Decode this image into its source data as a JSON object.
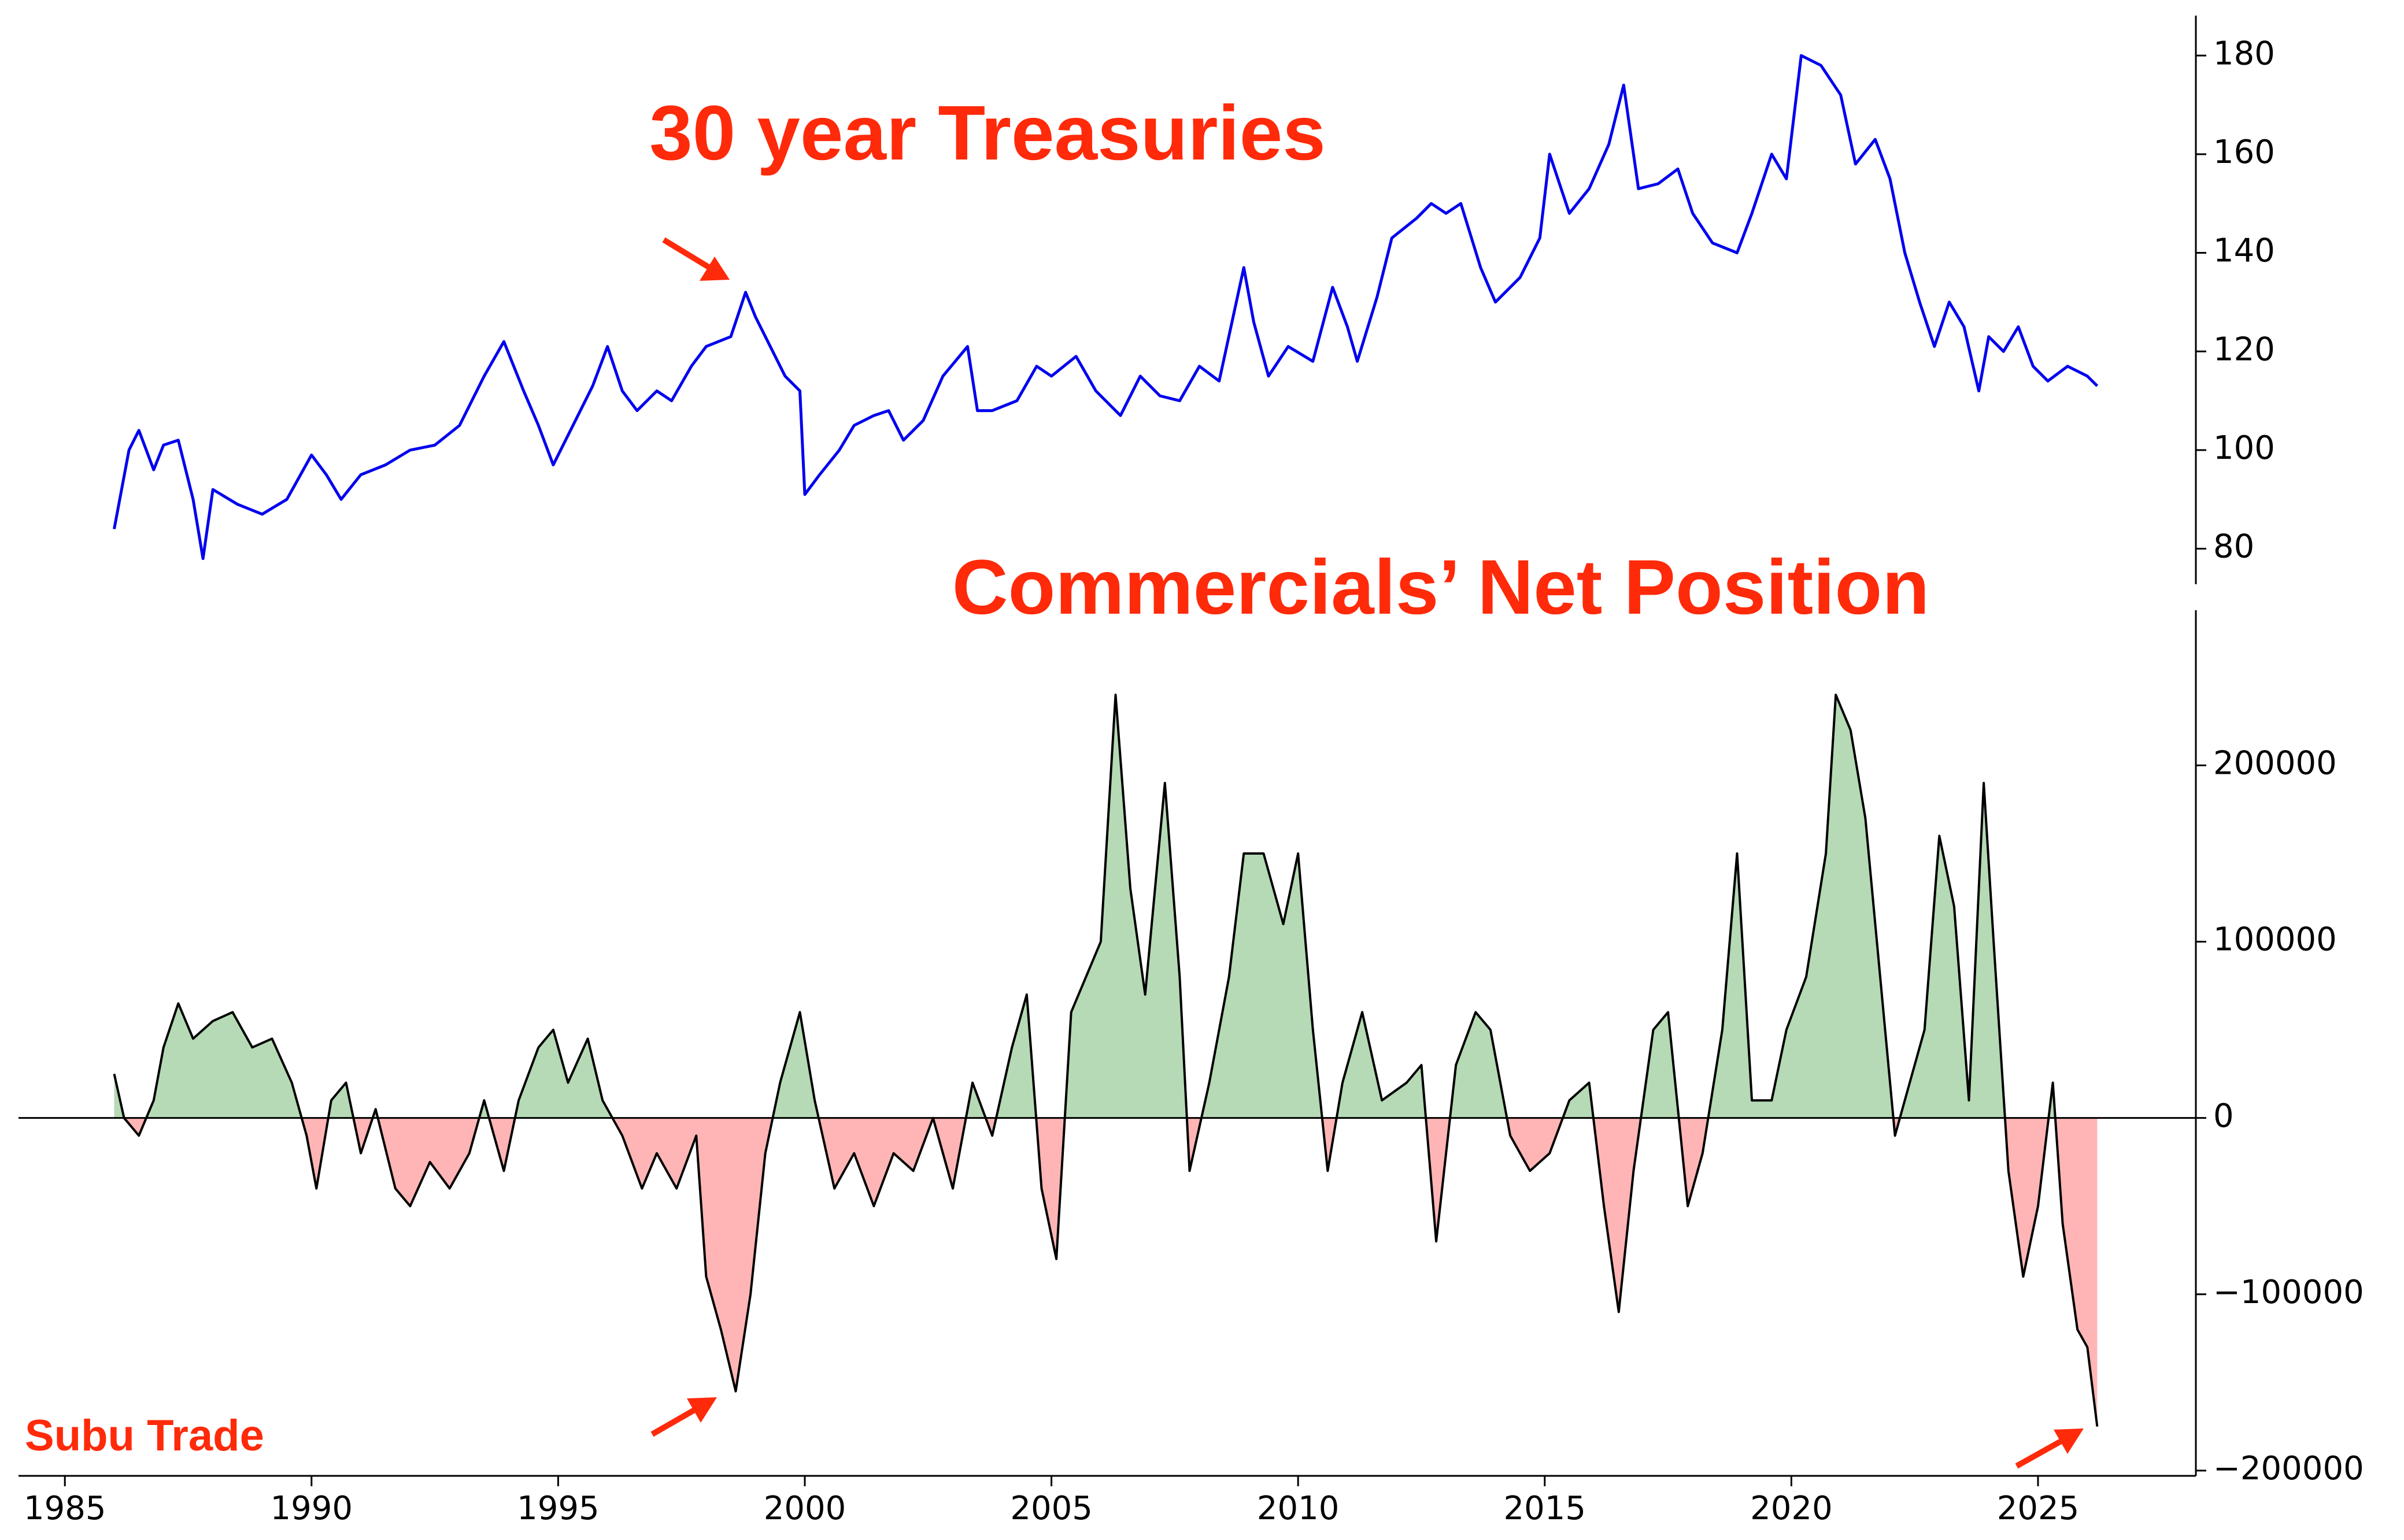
{
  "chart_data": [
    {
      "type": "line",
      "title": "30 year Treasuries",
      "x": [
        1986.0,
        1986.3,
        1986.5,
        1986.8,
        1987.0,
        1987.3,
        1987.6,
        1987.8,
        1988.0,
        1988.5,
        1989.0,
        1989.5,
        1990.0,
        1990.3,
        1990.6,
        1991.0,
        1991.5,
        1992.0,
        1992.5,
        1993.0,
        1993.5,
        1993.9,
        1994.3,
        1994.6,
        1994.9,
        1995.3,
        1995.7,
        1996.0,
        1996.3,
        1996.6,
        1997.0,
        1997.3,
        1997.7,
        1998.0,
        1998.5,
        1998.8,
        1999.0,
        1999.3,
        1999.6,
        1999.9,
        2000.0,
        2000.3,
        2000.7,
        2001.0,
        2001.4,
        2001.7,
        2002.0,
        2002.4,
        2002.8,
        2003.3,
        2003.5,
        2003.8,
        2004.3,
        2004.7,
        2005.0,
        2005.5,
        2005.9,
        2006.4,
        2006.8,
        2007.2,
        2007.6,
        2008.0,
        2008.4,
        2008.9,
        2009.1,
        2009.4,
        2009.8,
        2010.3,
        2010.7,
        2011.0,
        2011.2,
        2011.6,
        2011.9,
        2012.4,
        2012.7,
        2013.0,
        2013.3,
        2013.7,
        2014.0,
        2014.5,
        2014.9,
        2015.1,
        2015.5,
        2015.9,
        2016.3,
        2016.6,
        2016.9,
        2017.3,
        2017.7,
        2018.0,
        2018.4,
        2018.9,
        2019.2,
        2019.6,
        2019.9,
        2020.2,
        2020.6,
        2021.0,
        2021.3,
        2021.7,
        2022.0,
        2022.3,
        2022.6,
        2022.9,
        2023.2,
        2023.5,
        2023.8,
        2024.0,
        2024.3,
        2024.6,
        2024.9,
        2025.2,
        2025.6,
        2026.0,
        2026.2
      ],
      "series": [
        {
          "name": "30 year Treasuries",
          "color": "#0000ee",
          "values": [
            84,
            100,
            104,
            96,
            101,
            102,
            90,
            78,
            92,
            89,
            87,
            90,
            99,
            95,
            90,
            95,
            97,
            100,
            101,
            105,
            115,
            122,
            112,
            105,
            97,
            105,
            113,
            121,
            112,
            108,
            112,
            110,
            117,
            121,
            123,
            132,
            127,
            121,
            115,
            112,
            91,
            95,
            100,
            105,
            107,
            108,
            102,
            106,
            115,
            121,
            108,
            108,
            110,
            117,
            115,
            119,
            112,
            107,
            115,
            111,
            110,
            117,
            114,
            137,
            126,
            115,
            121,
            118,
            133,
            125,
            118,
            131,
            143,
            147,
            150,
            148,
            150,
            137,
            130,
            135,
            143,
            160,
            148,
            153,
            162,
            174,
            153,
            154,
            157,
            148,
            142,
            140,
            148,
            160,
            155,
            180,
            178,
            172,
            158,
            163,
            155,
            140,
            130,
            121,
            130,
            125,
            112,
            123,
            120,
            125,
            117,
            114,
            117,
            115,
            113
          ]
        }
      ],
      "xlim": [
        1984.06,
        2028.2
      ],
      "ylim": [
        72.8,
        188.1
      ],
      "yticks": [
        80,
        100,
        120,
        140,
        160,
        180
      ]
    },
    {
      "type": "area",
      "title": "Commercials’ Net Position",
      "annotation": "Subu Trade",
      "x": [
        1986.0,
        1986.2,
        1986.5,
        1986.8,
        1987.0,
        1987.3,
        1987.6,
        1988.0,
        1988.4,
        1988.8,
        1989.2,
        1989.6,
        1989.9,
        1990.1,
        1990.4,
        1990.7,
        1991.0,
        1991.3,
        1991.7,
        1992.0,
        1992.4,
        1992.8,
        1993.2,
        1993.5,
        1993.9,
        1994.2,
        1994.6,
        1994.9,
        1995.2,
        1995.6,
        1995.9,
        1996.3,
        1996.7,
        1997.0,
        1997.4,
        1997.8,
        1998.0,
        1998.3,
        1998.6,
        1998.9,
        1999.2,
        1999.5,
        1999.9,
        2000.2,
        2000.6,
        2001.0,
        2001.4,
        2001.8,
        2002.2,
        2002.6,
        2003.0,
        2003.4,
        2003.8,
        2004.2,
        2004.5,
        2004.8,
        2005.1,
        2005.4,
        2005.7,
        2006.0,
        2006.3,
        2006.6,
        2006.9,
        2007.3,
        2007.6,
        2007.8,
        2008.2,
        2008.6,
        2008.9,
        2009.3,
        2009.7,
        2010.0,
        2010.3,
        2010.6,
        2010.9,
        2011.3,
        2011.7,
        2012.2,
        2012.5,
        2012.8,
        2013.2,
        2013.6,
        2013.9,
        2014.3,
        2014.7,
        2015.1,
        2015.5,
        2015.9,
        2016.2,
        2016.5,
        2016.8,
        2017.2,
        2017.5,
        2017.9,
        2018.2,
        2018.6,
        2018.9,
        2019.2,
        2019.6,
        2019.9,
        2020.3,
        2020.7,
        2020.9,
        2021.2,
        2021.5,
        2021.8,
        2022.1,
        2022.4,
        2022.7,
        2023.0,
        2023.3,
        2023.6,
        2023.9,
        2024.1,
        2024.4,
        2024.7,
        2025.0,
        2025.3,
        2025.5,
        2025.8,
        2026.0,
        2026.2
      ],
      "series": [
        {
          "name": "Commercials’ Net Position",
          "color": "#000000",
          "values": [
            25000,
            0,
            -10000,
            10000,
            40000,
            65000,
            45000,
            55000,
            60000,
            40000,
            45000,
            20000,
            -10000,
            -40000,
            10000,
            20000,
            -20000,
            5000,
            -40000,
            -50000,
            -25000,
            -40000,
            -20000,
            10000,
            -30000,
            10000,
            40000,
            50000,
            20000,
            45000,
            10000,
            -10000,
            -40000,
            -20000,
            -40000,
            -10000,
            -90000,
            -120000,
            -155000,
            -100000,
            -20000,
            20000,
            60000,
            10000,
            -40000,
            -20000,
            -50000,
            -20000,
            -30000,
            0,
            -40000,
            20000,
            -10000,
            40000,
            70000,
            -40000,
            -80000,
            60000,
            80000,
            100000,
            240000,
            130000,
            70000,
            190000,
            80000,
            -30000,
            20000,
            80000,
            150000,
            150000,
            110000,
            150000,
            50000,
            -30000,
            20000,
            60000,
            10000,
            20000,
            30000,
            -70000,
            30000,
            60000,
            50000,
            -10000,
            -30000,
            -20000,
            10000,
            20000,
            -50000,
            -110000,
            -30000,
            50000,
            60000,
            -50000,
            -20000,
            50000,
            150000,
            10000,
            10000,
            50000,
            80000,
            150000,
            240000,
            220000,
            170000,
            80000,
            -10000,
            20000,
            50000,
            160000,
            120000,
            10000,
            190000,
            100000,
            -30000,
            -90000,
            -50000,
            20000,
            -60000,
            -120000,
            -130000,
            -175000
          ]
        }
      ],
      "positive_color": "#b5dab5",
      "negative_color": "#ffb5b5",
      "xlim": [
        1984.06,
        2028.2
      ],
      "xticks": [
        1985,
        1990,
        1995,
        2000,
        2005,
        2010,
        2015,
        2020,
        2025
      ],
      "ylim": [
        -203000,
        288000
      ],
      "yticks": [
        {
          "value": -200000,
          "label": "−200000"
        },
        {
          "value": -100000,
          "label": "−100000"
        },
        0,
        100000,
        200000
      ]
    }
  ]
}
